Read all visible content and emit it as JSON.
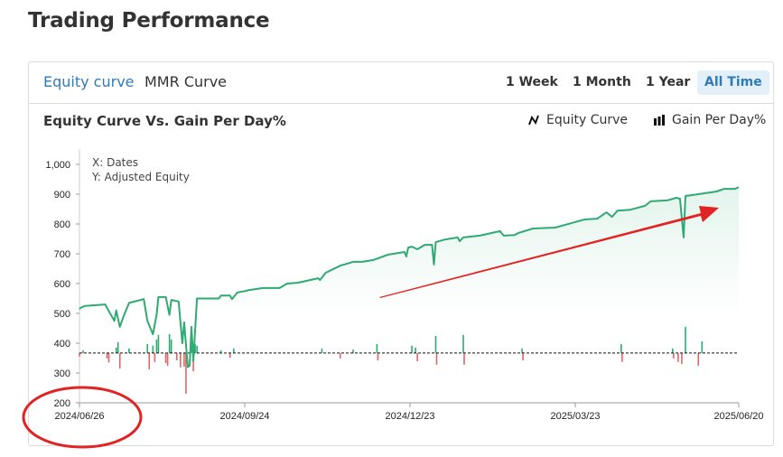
{
  "page": {
    "title": "Trading Performance"
  },
  "tabs": [
    {
      "label": "Equity curve",
      "active": true
    },
    {
      "label": "MMR Curve",
      "active": false
    }
  ],
  "ranges": [
    {
      "label": "1 Week"
    },
    {
      "label": "1 Month"
    },
    {
      "label": "1 Year"
    },
    {
      "label": "All Time",
      "active": true
    }
  ],
  "chart": {
    "title": "Equity Curve Vs. Gain Per Day%",
    "legend": [
      {
        "label": "Equity Curve",
        "icon": "line-chart-icon"
      },
      {
        "label": "Gain Per Day%",
        "icon": "bar-chart-icon"
      }
    ],
    "notes": {
      "x": "X: Dates",
      "y": "Y: Adjusted Equity"
    }
  },
  "colors": {
    "equity": "#2eaa72",
    "gain_pos": "#2eaa72",
    "gain_neg": "#e06666",
    "accent": "#2e7bb8",
    "annotation": "#e32222"
  },
  "chart_data": {
    "type": "line",
    "title": "Equity Curve Vs. Gain Per Day%",
    "xlabel": "Dates",
    "ylabel": "Adjusted Equity",
    "ylim": [
      200,
      1000
    ],
    "yticks": [
      {
        "v": 200,
        "label": "200"
      },
      {
        "v": 300,
        "label": "300"
      },
      {
        "v": 400,
        "label": "400"
      },
      {
        "v": 500,
        "label": "500"
      },
      {
        "v": 600,
        "label": "600"
      },
      {
        "v": 700,
        "label": "700"
      },
      {
        "v": 800,
        "label": "800"
      },
      {
        "v": 900,
        "label": "900"
      },
      {
        "v": 1000,
        "label": "1,000"
      }
    ],
    "xlim_days": [
      0,
      359
    ],
    "xticks": [
      {
        "day": 0,
        "label": "2024/06/26"
      },
      {
        "day": 90,
        "label": "2024/09/24"
      },
      {
        "day": 180,
        "label": "2024/12/23"
      },
      {
        "day": 270,
        "label": "2025/03/23"
      },
      {
        "day": 359,
        "label": "2025/06/20"
      }
    ],
    "equity_series": {
      "name": "Equity Curve",
      "points": [
        [
          0,
          515
        ],
        [
          1,
          520
        ],
        [
          3,
          525
        ],
        [
          14,
          530
        ],
        [
          19,
          475
        ],
        [
          20,
          510
        ],
        [
          22,
          455
        ],
        [
          24,
          490
        ],
        [
          27,
          535
        ],
        [
          35,
          548
        ],
        [
          37,
          475
        ],
        [
          40,
          430
        ],
        [
          42,
          495
        ],
        [
          43,
          555
        ],
        [
          47,
          555
        ],
        [
          49,
          495
        ],
        [
          50,
          545
        ],
        [
          54,
          540
        ],
        [
          56,
          400
        ],
        [
          57,
          470
        ],
        [
          59,
          320
        ],
        [
          60,
          325
        ],
        [
          61,
          455
        ],
        [
          62,
          340
        ],
        [
          64,
          550
        ],
        [
          76,
          550
        ],
        [
          77,
          560
        ],
        [
          82,
          560
        ],
        [
          83,
          548
        ],
        [
          86,
          570
        ],
        [
          90,
          575
        ],
        [
          92,
          578
        ],
        [
          100,
          585
        ],
        [
          109,
          585
        ],
        [
          113,
          600
        ],
        [
          119,
          603
        ],
        [
          130,
          618
        ],
        [
          131,
          612
        ],
        [
          134,
          636
        ],
        [
          142,
          660
        ],
        [
          149,
          673
        ],
        [
          154,
          673
        ],
        [
          160,
          679
        ],
        [
          168,
          697
        ],
        [
          177,
          706
        ],
        [
          178,
          691
        ],
        [
          179,
          721
        ],
        [
          181,
          724
        ],
        [
          184,
          715
        ],
        [
          188,
          730
        ],
        [
          192,
          730
        ],
        [
          193,
          664
        ],
        [
          194,
          739
        ],
        [
          199,
          748
        ],
        [
          206,
          755
        ],
        [
          207,
          742
        ],
        [
          209,
          755
        ],
        [
          218,
          761
        ],
        [
          229,
          776
        ],
        [
          231,
          761
        ],
        [
          237,
          763
        ],
        [
          239,
          770
        ],
        [
          247,
          785
        ],
        [
          259,
          788
        ],
        [
          275,
          815
        ],
        [
          282,
          818
        ],
        [
          287,
          839
        ],
        [
          290,
          824
        ],
        [
          293,
          845
        ],
        [
          300,
          848
        ],
        [
          308,
          861
        ],
        [
          311,
          876
        ],
        [
          320,
          879
        ],
        [
          325,
          888
        ],
        [
          327,
          885
        ],
        [
          329,
          755
        ],
        [
          330,
          894
        ],
        [
          337,
          900
        ],
        [
          347,
          909
        ],
        [
          351,
          918
        ],
        [
          357,
          918
        ],
        [
          359,
          924
        ]
      ]
    },
    "gain_series": {
      "name": "Gain Per Day%",
      "baseline_equity": 367,
      "points": [
        [
          0,
          -1.3
        ],
        [
          2,
          1
        ],
        [
          15,
          -2
        ],
        [
          16,
          -3.5
        ],
        [
          20,
          2
        ],
        [
          21,
          4
        ],
        [
          22,
          -5.7
        ],
        [
          27,
          1.7
        ],
        [
          37,
          3.3
        ],
        [
          38,
          -6
        ],
        [
          40,
          2.7
        ],
        [
          41,
          -3.3
        ],
        [
          42,
          5
        ],
        [
          43,
          6.7
        ],
        [
          47,
          -3.7
        ],
        [
          48,
          -4.7
        ],
        [
          49,
          7
        ],
        [
          50,
          5
        ],
        [
          53,
          -2.7
        ],
        [
          55,
          -5.3
        ],
        [
          57,
          -5
        ],
        [
          58,
          -15
        ],
        [
          61,
          6
        ],
        [
          62,
          -6.7
        ],
        [
          63,
          3.3
        ],
        [
          64,
          2.7
        ],
        [
          77,
          1
        ],
        [
          82,
          -1.7
        ],
        [
          84,
          1.7
        ],
        [
          132,
          1.7
        ],
        [
          142,
          -2
        ],
        [
          149,
          1.3
        ],
        [
          162,
          3.3
        ],
        [
          162.5,
          -2.7
        ],
        [
          181,
          2.7
        ],
        [
          183,
          2
        ],
        [
          184,
          -3
        ],
        [
          194,
          6.3
        ],
        [
          194.5,
          -4.3
        ],
        [
          209,
          6.7
        ],
        [
          209.5,
          -4.3
        ],
        [
          241,
          1.7
        ],
        [
          241.5,
          -2.7
        ],
        [
          295,
          3.3
        ],
        [
          295.5,
          -3.3
        ],
        [
          323,
          1.7
        ],
        [
          323.5,
          -2
        ],
        [
          326,
          -3.3
        ],
        [
          328,
          -4
        ],
        [
          330,
          9.7
        ],
        [
          337,
          -4.7
        ],
        [
          339,
          4.3
        ]
      ]
    }
  }
}
